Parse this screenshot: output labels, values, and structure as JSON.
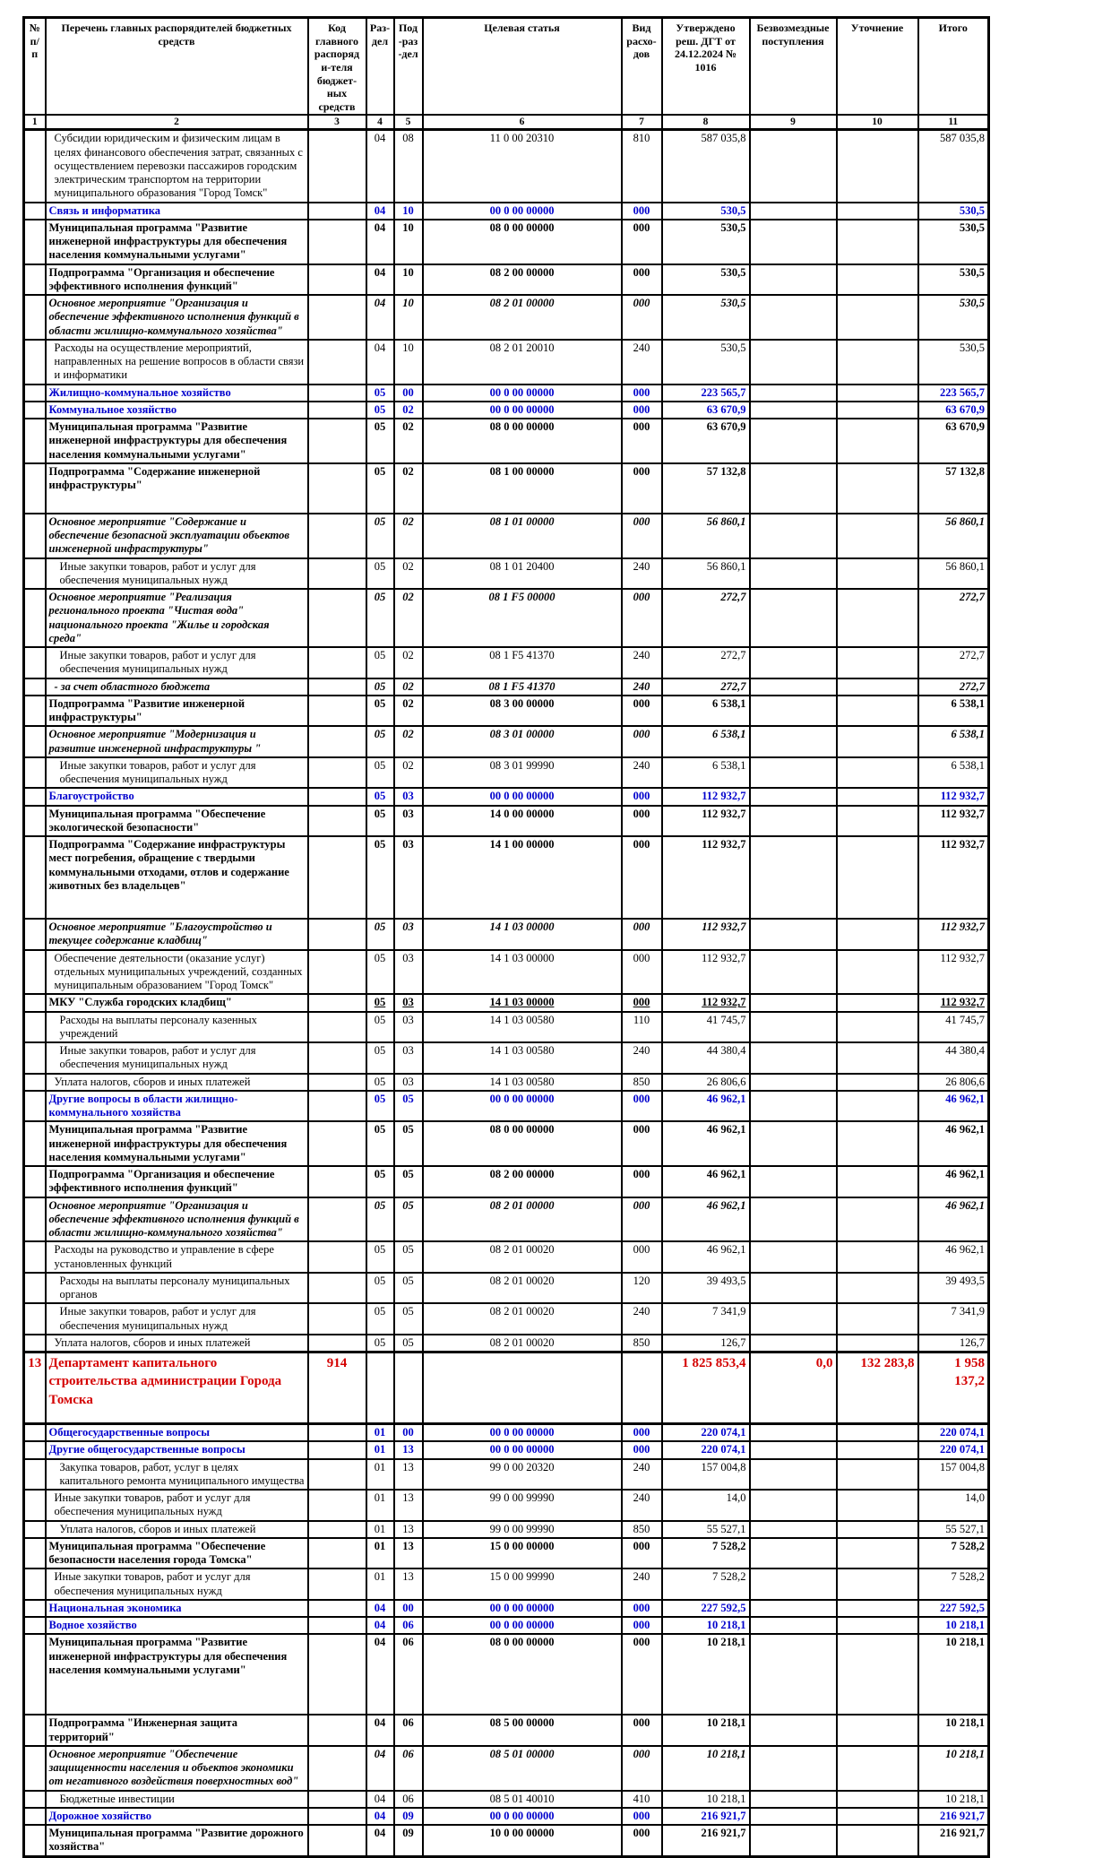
{
  "table": {
    "headers": [
      "№ п/п",
      "Перечень главных распорядителей бюджетных средств",
      "Код главного распоряди-теля бюджет-ных средств",
      "Раз-дел",
      "Под-раз-дел",
      "Целевая статья",
      "Вид расхо-дов",
      "Утверждено реш. ДГТ от 24.12.2024 № 1016",
      "Безвозмездные поступления",
      "Уточнение",
      "Итого"
    ],
    "column_numbers": [
      "1",
      "2",
      "3",
      "4",
      "5",
      "6",
      "7",
      "8",
      "9",
      "10",
      "11"
    ],
    "rows": [
      {
        "name": "Субсидии юридическим и физическим лицам в целях финансового обеспечения затрат, связанных с осуществлением перевозки пассажиров городским электрическим транспортом на территории муниципального образования \"Город Томск\"",
        "rz": "04",
        "pr": "08",
        "csr": "11 0 00 20310",
        "vr": "810",
        "approved": "587 035,8",
        "total": "587 035,8",
        "style": "normal",
        "indent": 1,
        "minh": 74
      },
      {
        "name": "Связь и информатика",
        "rz": "04",
        "pr": "10",
        "csr": "00 0 00 00000",
        "vr": "000",
        "approved": "530,5",
        "total": "530,5",
        "style": "section"
      },
      {
        "name": "Муниципальная программа \"Развитие инженерной инфраструктуры для обеспечения населения коммунальными услугами\"",
        "rz": "04",
        "pr": "10",
        "csr": "08 0 00 00000",
        "vr": "000",
        "approved": "530,5",
        "total": "530,5",
        "style": "bold"
      },
      {
        "name": "Подпрограмма \"Организация и обеспечение эффективного исполнения функций\"",
        "rz": "04",
        "pr": "10",
        "csr": "08 2 00 00000",
        "vr": "000",
        "approved": "530,5",
        "total": "530,5",
        "style": "bold"
      },
      {
        "name": "Основное мероприятие \"Организация и обеспечение эффективного исполнения функций в области жилищно-коммунального хозяйства\"",
        "rz": "04",
        "pr": "10",
        "csr": "08 2 01 00000",
        "vr": "000",
        "approved": "530,5",
        "total": "530,5",
        "style": "event"
      },
      {
        "name": "Расходы на осуществление мероприятий, направленных на решение вопросов в области связи и информатики",
        "rz": "04",
        "pr": "10",
        "csr": "08 2 01 20010",
        "vr": "240",
        "approved": "530,5",
        "total": "530,5",
        "style": "normal",
        "indent": 1
      },
      {
        "name": "Жилищно-коммунальное хозяйство",
        "rz": "05",
        "pr": "00",
        "csr": "00 0 00 00000",
        "vr": "000",
        "approved": "223 565,7",
        "total": "223 565,7",
        "style": "section"
      },
      {
        "name": "Коммунальное хозяйство",
        "rz": "05",
        "pr": "02",
        "csr": "00 0 00 00000",
        "vr": "000",
        "approved": "63 670,9",
        "total": "63 670,9",
        "style": "section"
      },
      {
        "name": "Муниципальная программа \"Развитие инженерной инфраструктуры для обеспечения населения коммунальными услугами\"",
        "rz": "05",
        "pr": "02",
        "csr": "08 0 00 00000",
        "vr": "000",
        "approved": "63 670,9",
        "total": "63 670,9",
        "style": "bold"
      },
      {
        "name": "Подпрограмма \"Содержание инженерной инфраструктуры\"",
        "rz": "05",
        "pr": "02",
        "csr": "08 1 00 00000",
        "vr": "000",
        "approved": "57 132,8",
        "total": "57 132,8",
        "style": "bold",
        "minh": 56
      },
      {
        "name": "Основное мероприятие \"Содержание и обеспечение безопасной эксплуатации объектов инженерной инфраструктуры\"",
        "rz": "05",
        "pr": "02",
        "csr": "08 1 01 00000",
        "vr": "000",
        "approved": "56 860,1",
        "total": "56 860,1",
        "style": "event"
      },
      {
        "name": "Иные закупки товаров, работ и услуг для обеспечения муниципальных нужд",
        "rz": "05",
        "pr": "02",
        "csr": "08 1 01 20400",
        "vr": "240",
        "approved": "56 860,1",
        "total": "56 860,1",
        "style": "normal",
        "indent": 2
      },
      {
        "name": "Основное мероприятие \"Реализация регионального проекта \"Чистая вода\" национального проекта \"Жилье и городская среда\"",
        "rz": "05",
        "pr": "02",
        "csr": "08 1 F5 00000",
        "vr": "000",
        "approved": "272,7",
        "total": "272,7",
        "style": "event"
      },
      {
        "name": "Иные закупки товаров, работ и услуг для обеспечения муниципальных нужд",
        "rz": "05",
        "pr": "02",
        "csr": "08 1 F5 41370",
        "vr": "240",
        "approved": "272,7",
        "total": "272,7",
        "style": "normal",
        "indent": 2
      },
      {
        "name": "- за счет областного бюджета",
        "rz": "05",
        "pr": "02",
        "csr": "08 1 F5 41370",
        "vr": "240",
        "approved": "272,7",
        "total": "272,7",
        "style": "event",
        "indent": 1
      },
      {
        "name": "Подпрограмма \"Развитие инженерной инфраструктуры\"",
        "rz": "05",
        "pr": "02",
        "csr": "08 3 00 00000",
        "vr": "000",
        "approved": "6 538,1",
        "total": "6 538,1",
        "style": "bold"
      },
      {
        "name": "Основное мероприятие \"Модернизация и развитие инженерной инфраструктуры \"",
        "rz": "05",
        "pr": "02",
        "csr": "08 3 01 00000",
        "vr": "000",
        "approved": "6 538,1",
        "total": "6 538,1",
        "style": "event"
      },
      {
        "name": "Иные закупки товаров, работ и услуг для обеспечения муниципальных нужд",
        "rz": "05",
        "pr": "02",
        "csr": "08 3 01 99990",
        "vr": "240",
        "approved": "6 538,1",
        "total": "6 538,1",
        "style": "normal",
        "indent": 2
      },
      {
        "name": "Благоустройство",
        "rz": "05",
        "pr": "03",
        "csr": "00 0 00 00000",
        "vr": "000",
        "approved": "112 932,7",
        "total": "112 932,7",
        "style": "section"
      },
      {
        "name": "Муниципальная программа \"Обеспечение экологической безопасности\"",
        "rz": "05",
        "pr": "03",
        "csr": "14 0 00 00000",
        "vr": "000",
        "approved": "112 932,7",
        "total": "112 932,7",
        "style": "bold"
      },
      {
        "name": "Подпрограмма \"Содержание инфраструктуры мест погребения, обращение с твердыми коммунальными отходами, отлов и содержание животных без владельцев\"",
        "rz": "05",
        "pr": "03",
        "csr": "14 1 00 00000",
        "vr": "000",
        "approved": "112 932,7",
        "total": "112 932,7",
        "style": "bold",
        "minh": 92
      },
      {
        "name": "Основное мероприятие \"Благоустройство и текущее содержание кладбищ\"",
        "rz": "05",
        "pr": "03",
        "csr": "14 1 03 00000",
        "vr": "000",
        "approved": "112 932,7",
        "total": "112 932,7",
        "style": "event"
      },
      {
        "name": "Обеспечение деятельности (оказание услуг) отдельных муниципальных учреждений, созданных муниципальным образованием \"Город Томск\"",
        "rz": "05",
        "pr": "03",
        "csr": "14 1 03 00000",
        "vr": "000",
        "approved": "112 932,7",
        "total": "112 932,7",
        "style": "normal",
        "indent": 1
      },
      {
        "name": "МКУ \"Служба городских кладбищ\"",
        "rz": "05",
        "pr": "03",
        "csr": "14 1 03 00000",
        "vr": "000",
        "approved": "112 932,7",
        "total": "112 932,7",
        "style": "mku"
      },
      {
        "name": "Расходы на выплаты персоналу казенных учреждений",
        "rz": "05",
        "pr": "03",
        "csr": "14 1 03 00580",
        "vr": "110",
        "approved": "41 745,7",
        "total": "41 745,7",
        "style": "normal",
        "indent": 2
      },
      {
        "name": "Иные закупки товаров, работ и услуг для обеспечения муниципальных нужд",
        "rz": "05",
        "pr": "03",
        "csr": "14 1 03 00580",
        "vr": "240",
        "approved": "44 380,4",
        "total": "44 380,4",
        "style": "normal",
        "indent": 2
      },
      {
        "name": "Уплата налогов, сборов и иных платежей",
        "rz": "05",
        "pr": "03",
        "csr": "14 1 03 00580",
        "vr": "850",
        "approved": "26 806,6",
        "total": "26 806,6",
        "style": "normal",
        "indent": 1
      },
      {
        "name": "Другие вопросы в области жилищно-коммунального хозяйства",
        "rz": "05",
        "pr": "05",
        "csr": "00 0 00 00000",
        "vr": "000",
        "approved": "46 962,1",
        "total": "46 962,1",
        "style": "section"
      },
      {
        "name": "Муниципальная программа \"Развитие инженерной инфраструктуры для обеспечения населения коммунальными услугами\"",
        "rz": "05",
        "pr": "05",
        "csr": "08 0 00 00000",
        "vr": "000",
        "approved": "46 962,1",
        "total": "46 962,1",
        "style": "bold"
      },
      {
        "name": "Подпрограмма \"Организация и обеспечение эффективного исполнения функций\"",
        "rz": "05",
        "pr": "05",
        "csr": "08 2 00 00000",
        "vr": "000",
        "approved": "46 962,1",
        "total": "46 962,1",
        "style": "bold"
      },
      {
        "name": "Основное мероприятие \"Организация и обеспечение эффективного исполнения функций в области жилищно-коммунального хозяйства\"",
        "rz": "05",
        "pr": "05",
        "csr": "08 2 01 00000",
        "vr": "000",
        "approved": "46 962,1",
        "total": "46 962,1",
        "style": "event"
      },
      {
        "name": "Расходы на руководство и управление в сфере установленных функций",
        "rz": "05",
        "pr": "05",
        "csr": "08 2 01 00020",
        "vr": "000",
        "approved": "46 962,1",
        "total": "46 962,1",
        "style": "normal",
        "indent": 1
      },
      {
        "name": "Расходы на выплаты персоналу муниципальных органов",
        "rz": "05",
        "pr": "05",
        "csr": "08 2 01 00020",
        "vr": "120",
        "approved": "39 493,5",
        "total": "39 493,5",
        "style": "normal",
        "indent": 2
      },
      {
        "name": "Иные закупки товаров, работ и услуг для обеспечения муниципальных нужд",
        "rz": "05",
        "pr": "05",
        "csr": "08 2 01 00020",
        "vr": "240",
        "approved": "7 341,9",
        "total": "7 341,9",
        "style": "normal",
        "indent": 2
      },
      {
        "name": "Уплата налогов, сборов и иных платежей",
        "rz": "05",
        "pr": "05",
        "csr": "08 2 01 00020",
        "vr": "850",
        "approved": "126,7",
        "total": "126,7",
        "style": "normal",
        "indent": 1
      },
      {
        "num": "13",
        "name": "Департамент капитального строительства администрации Города Томска",
        "code": "914",
        "approved": "1 825 853,4",
        "grants": "0,0",
        "clarification": "132 283,8",
        "total": "1 958 137,2",
        "style": "dept",
        "minh": 80
      },
      {
        "name": "Общегосударственные вопросы",
        "rz": "01",
        "pr": "00",
        "csr": "00 0 00 00000",
        "vr": "000",
        "approved": "220 074,1",
        "total": "220 074,1",
        "style": "section"
      },
      {
        "name": "Другие общегосударственные вопросы",
        "rz": "01",
        "pr": "13",
        "csr": "00 0 00 00000",
        "vr": "000",
        "approved": "220 074,1",
        "total": "220 074,1",
        "style": "section"
      },
      {
        "name": "Закупка товаров, работ, услуг в целях капитального ремонта муниципального имущества",
        "rz": "01",
        "pr": "13",
        "csr": "99 0 00 20320",
        "vr": "240",
        "approved": "157 004,8",
        "total": "157 004,8",
        "style": "normal",
        "indent": 2
      },
      {
        "name": "Иные закупки товаров, работ и услуг для обеспечения муниципальных нужд",
        "rz": "01",
        "pr": "13",
        "csr": "99 0 00 99990",
        "vr": "240",
        "approved": "14,0",
        "total": "14,0",
        "style": "normal",
        "indent": 1
      },
      {
        "name": "Уплата налогов, сборов и иных платежей",
        "rz": "01",
        "pr": "13",
        "csr": "99 0 00 99990",
        "vr": "850",
        "approved": "55 527,1",
        "total": "55 527,1",
        "style": "normal",
        "indent": 2
      },
      {
        "name": "Муниципальная программа \"Обеспечение безопасности населения города Томска\"",
        "rz": "01",
        "pr": "13",
        "csr": "15 0 00 00000",
        "vr": "000",
        "approved": "7 528,2",
        "total": "7 528,2",
        "style": "bold"
      },
      {
        "name": "Иные закупки товаров, работ и услуг для обеспечения муниципальных нужд",
        "rz": "01",
        "pr": "13",
        "csr": "15 0 00 99990",
        "vr": "240",
        "approved": "7 528,2",
        "total": "7 528,2",
        "style": "normal",
        "indent": 1
      },
      {
        "name": "Национальная экономика",
        "rz": "04",
        "pr": "00",
        "csr": "00 0 00 00000",
        "vr": "000",
        "approved": "227 592,5",
        "total": "227 592,5",
        "style": "section"
      },
      {
        "name": "Водное хозяйство",
        "rz": "04",
        "pr": "06",
        "csr": "00 0 00 00000",
        "vr": "000",
        "approved": "10 218,1",
        "total": "10 218,1",
        "style": "section"
      },
      {
        "name": "Муниципальная программа \"Развитие инженерной инфраструктуры для обеспечения населения коммунальными услугами\"",
        "rz": "04",
        "pr": "06",
        "csr": "08 0 00 00000",
        "vr": "000",
        "approved": "10 218,1",
        "total": "10 218,1",
        "style": "bold",
        "minh": 90
      },
      {
        "name": "Подпрограмма \"Инженерная защита территорий\"",
        "rz": "04",
        "pr": "06",
        "csr": "08 5 00 00000",
        "vr": "000",
        "approved": "10 218,1",
        "total": "10 218,1",
        "style": "bold"
      },
      {
        "name": "Основное мероприятие \"Обеспечение защищенности населения и объектов экономики от негативного воздействия поверхностных вод\"",
        "rz": "04",
        "pr": "06",
        "csr": "08 5 01 00000",
        "vr": "000",
        "approved": "10 218,1",
        "total": "10 218,1",
        "style": "event"
      },
      {
        "name": "Бюджетные инвестиции",
        "rz": "04",
        "pr": "06",
        "csr": "08 5 01 40010",
        "vr": "410",
        "approved": "10 218,1",
        "total": "10 218,1",
        "style": "normal",
        "indent": 2
      },
      {
        "name": "Дорожное хозяйство",
        "rz": "04",
        "pr": "09",
        "csr": "00 0 00 00000",
        "vr": "000",
        "approved": "216 921,7",
        "total": "216 921,7",
        "style": "section"
      },
      {
        "name": "Муниципальная программа \"Развитие дорожного хозяйства\"",
        "rz": "04",
        "pr": "09",
        "csr": "10 0 00 00000",
        "vr": "000",
        "approved": "216 921,7",
        "total": "216 921,7",
        "style": "bold"
      }
    ]
  }
}
